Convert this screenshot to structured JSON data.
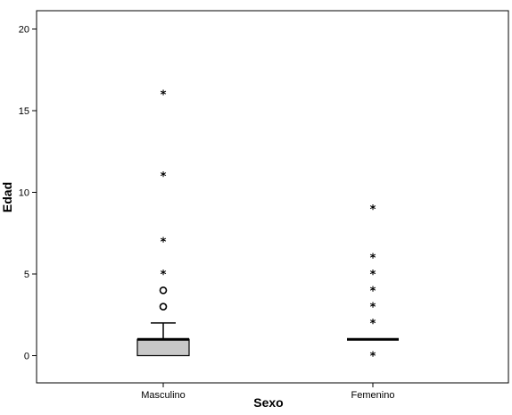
{
  "chart_data": {
    "type": "boxplot",
    "title": "",
    "xlabel": "Sexo",
    "ylabel": "Edad",
    "ylim": [
      -1,
      21
    ],
    "yticks": [
      0,
      5,
      10,
      15,
      20
    ],
    "categories": [
      "Masculino",
      "Femenino"
    ],
    "series": [
      {
        "category": "Masculino",
        "min": 0,
        "q1": 0,
        "median": 1,
        "q3": 1,
        "max": 2,
        "outliers": [
          3,
          4
        ],
        "extremes": [
          5,
          7,
          11,
          16
        ]
      },
      {
        "category": "Femenino",
        "min": 1,
        "q1": 1,
        "median": 1,
        "q3": 1,
        "max": 1,
        "outliers": [],
        "extremes": [
          0,
          2,
          3,
          4,
          5,
          6,
          9
        ]
      }
    ],
    "box_fill": "#c8c8c8",
    "outlier_marker": "circle",
    "extreme_marker": "star",
    "grid": false,
    "legend": "none"
  }
}
